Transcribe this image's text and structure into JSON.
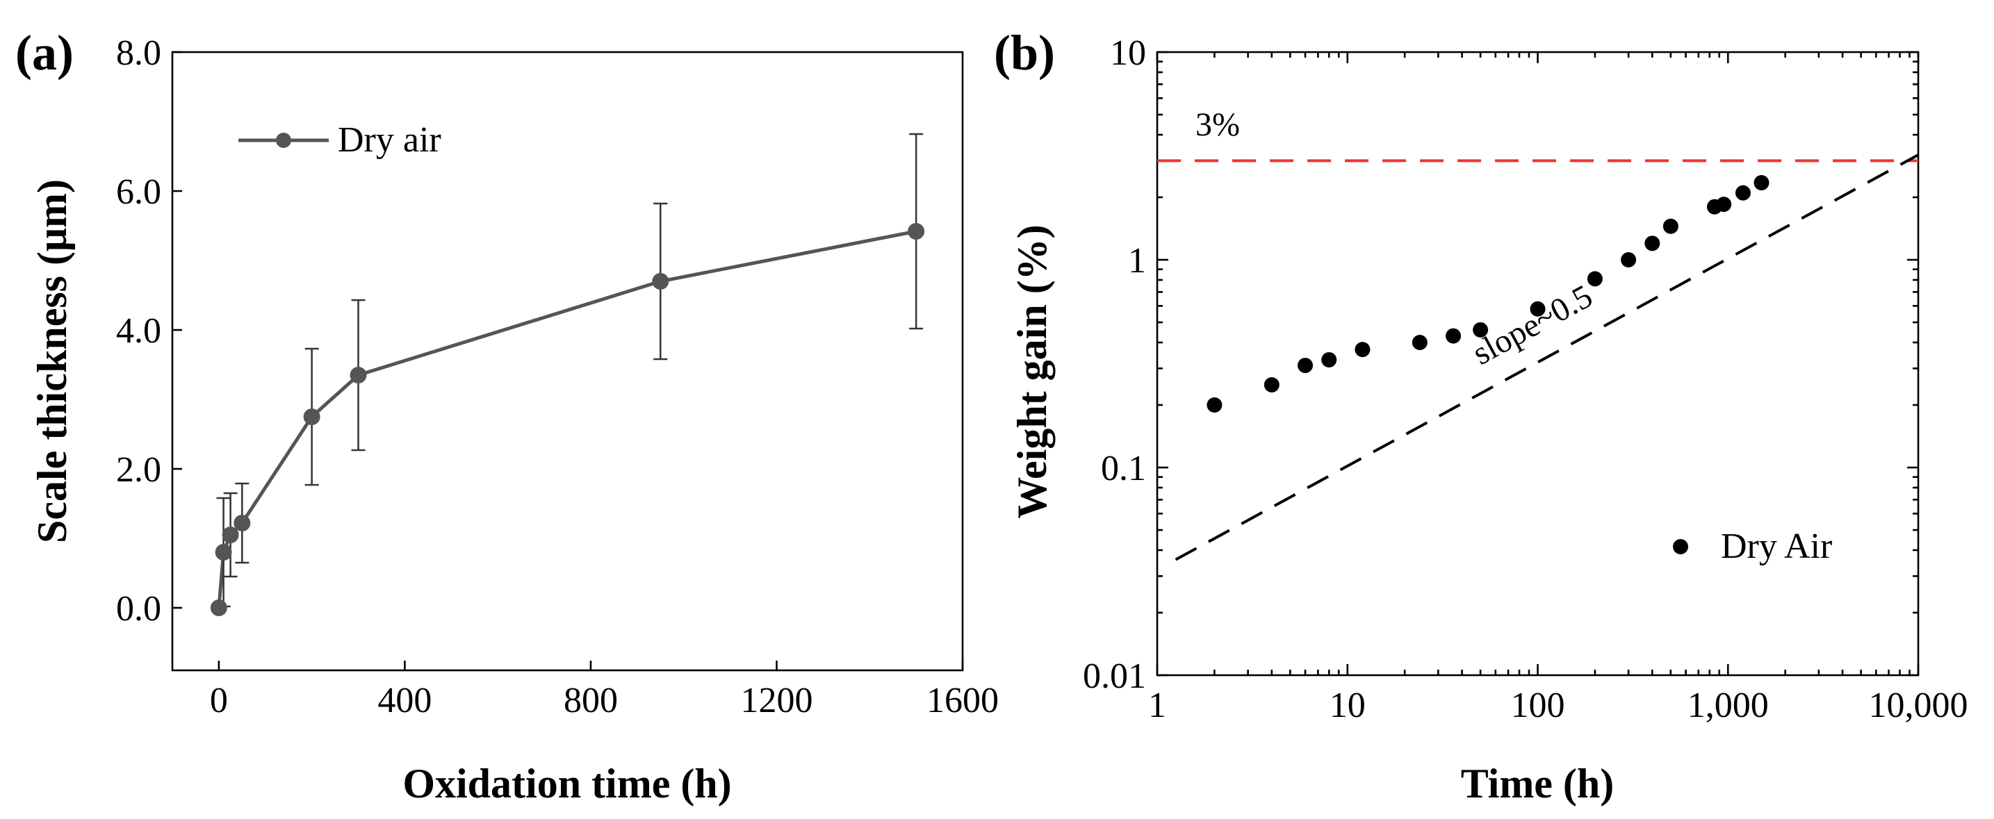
{
  "chart_data": [
    {
      "panel": "(a)",
      "type": "line",
      "xlabel": "Oxidation time (h)",
      "ylabel": "Scale thickness (μm)",
      "xlim": [
        -100,
        1600
      ],
      "ylim": [
        -0.9,
        8.0
      ],
      "xticks": [
        0,
        400,
        800,
        1200,
        1600
      ],
      "xtick_labels": [
        "0",
        "400",
        "800",
        "1200",
        "1600"
      ],
      "yticks": [
        0,
        2,
        4,
        6,
        8
      ],
      "ytick_labels": [
        "0.0",
        "2.0",
        "4.0",
        "6.0",
        "8.0"
      ],
      "legend": "Dry air",
      "legend_position": "top-left",
      "color": "#555555",
      "x": [
        0,
        10,
        25,
        50,
        200,
        300,
        950,
        1500
      ],
      "y": [
        0.0,
        0.8,
        1.05,
        1.22,
        2.75,
        3.35,
        4.7,
        5.42
      ],
      "yerr": [
        0.0,
        0.78,
        0.6,
        0.57,
        0.98,
        1.08,
        1.12,
        1.4
      ]
    },
    {
      "panel": "(b)",
      "type": "scatter",
      "xscale": "log",
      "yscale": "log",
      "xlabel": "Time (h)",
      "ylabel": "Weight gain (%)",
      "xlim": [
        1,
        10000
      ],
      "ylim": [
        0.01,
        10
      ],
      "xticks": [
        1,
        10,
        100,
        1000,
        10000
      ],
      "xtick_labels": [
        "1",
        "10",
        "100",
        "1,000",
        "10,000"
      ],
      "yticks": [
        0.01,
        0.1,
        1,
        10
      ],
      "ytick_labels": [
        "0.01",
        "0.1",
        "1",
        "10"
      ],
      "legend": "Dry Air",
      "legend_position": "bottom-right",
      "color": "#000000",
      "x": [
        2,
        4,
        6,
        8,
        12,
        24,
        36,
        50,
        100,
        200,
        300,
        400,
        500,
        850,
        950,
        1200,
        1500
      ],
      "y": [
        0.2,
        0.25,
        0.31,
        0.33,
        0.37,
        0.4,
        0.43,
        0.46,
        0.58,
        0.81,
        1.0,
        1.2,
        1.45,
        1.8,
        1.85,
        2.1,
        2.35
      ],
      "reference_line": {
        "label": "3%",
        "y": 3,
        "color": "#ee3333"
      },
      "slope_line": {
        "label": "slope~0.5",
        "x": [
          1.25,
          10000
        ],
        "y": [
          0.036,
          3.2
        ]
      }
    }
  ]
}
